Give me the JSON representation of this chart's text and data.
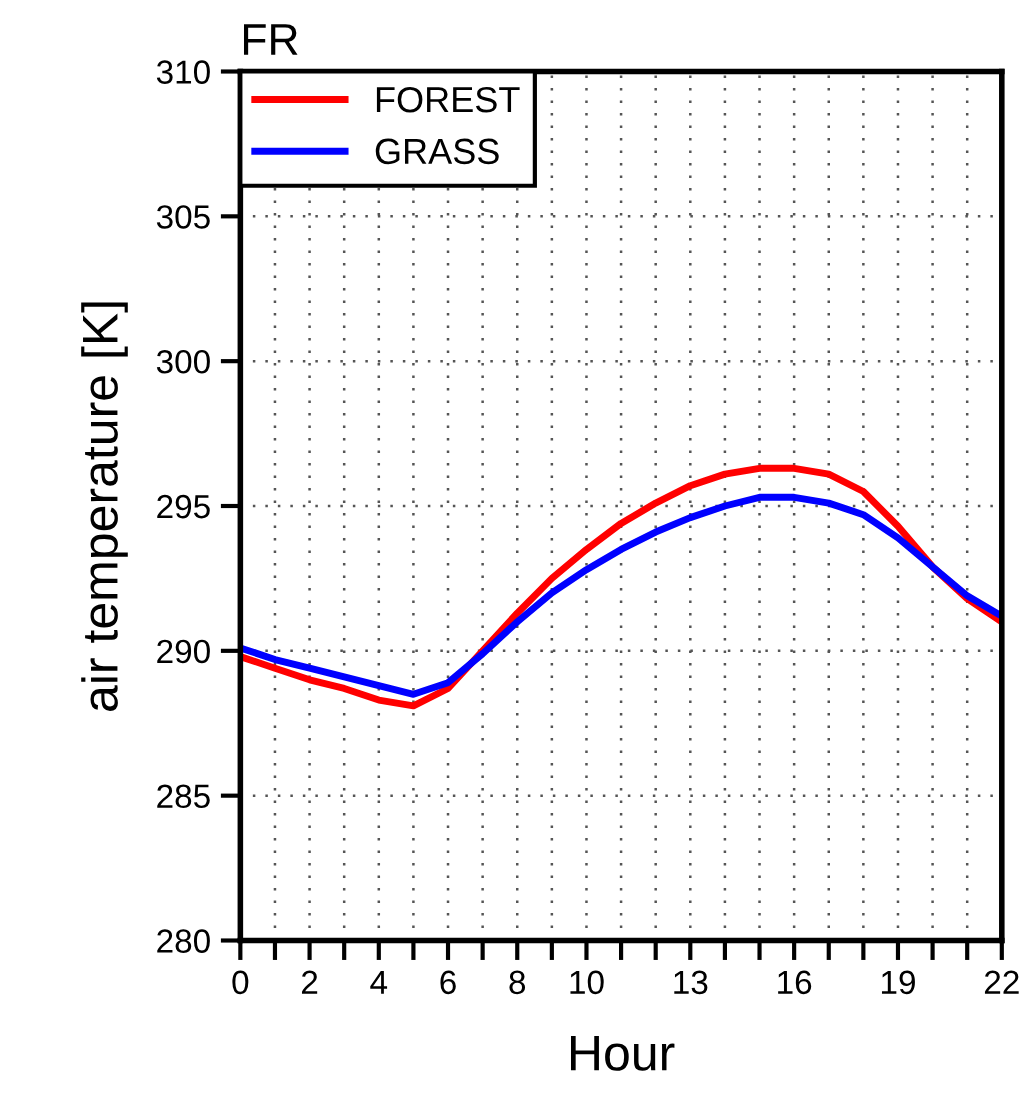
{
  "chart_data": {
    "type": "line",
    "title": "FR",
    "xlabel": "Hour",
    "ylabel": "air temperature [K]",
    "x": [
      0,
      1,
      2,
      3,
      4,
      5,
      6,
      7,
      8,
      9,
      10,
      11,
      12,
      13,
      14,
      15,
      16,
      17,
      18,
      19,
      20,
      21,
      22
    ],
    "series": [
      {
        "name": "FOREST",
        "color": "#ff0000",
        "values": [
          289.8,
          289.4,
          289.0,
          288.7,
          288.3,
          288.1,
          288.7,
          290.0,
          291.3,
          292.5,
          293.5,
          294.4,
          295.1,
          295.7,
          296.1,
          296.3,
          296.3,
          296.1,
          295.5,
          294.3,
          292.9,
          291.8,
          291.0
        ]
      },
      {
        "name": "GRASS",
        "color": "#0000ff",
        "values": [
          290.1,
          289.7,
          289.4,
          289.1,
          288.8,
          288.5,
          288.9,
          289.9,
          291.0,
          292.0,
          292.8,
          293.5,
          294.1,
          294.6,
          295.0,
          295.3,
          295.3,
          295.1,
          294.7,
          293.9,
          292.9,
          291.9,
          291.2
        ]
      }
    ],
    "xlim": [
      0,
      22
    ],
    "xticks": [
      0,
      {
        "value": 1,
        "label": null
      },
      2,
      {
        "value": 3,
        "label": null
      },
      4,
      {
        "value": 5,
        "label": null
      },
      6,
      {
        "value": 7,
        "label": null
      },
      8,
      {
        "value": 9,
        "label": null
      },
      10,
      {
        "value": 11,
        "label": null
      },
      {
        "value": 12,
        "label": null
      },
      13,
      {
        "value": 14,
        "label": null
      },
      {
        "value": 15,
        "label": null
      },
      16,
      {
        "value": 17,
        "label": null
      },
      {
        "value": 18,
        "label": null
      },
      19,
      {
        "value": 20,
        "label": null
      },
      {
        "value": 21,
        "label": null
      },
      22
    ],
    "ylim": [
      280,
      310
    ],
    "yticks": [
      280,
      285,
      290,
      295,
      300,
      305,
      310
    ],
    "grid": true,
    "legend": "top left",
    "marker": "none",
    "line_style": "solid"
  }
}
